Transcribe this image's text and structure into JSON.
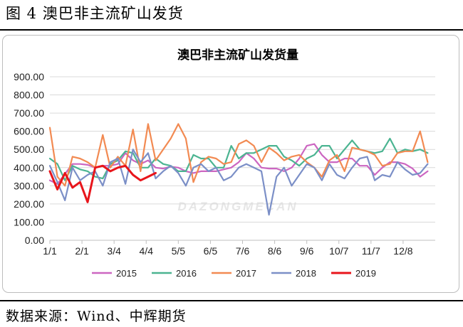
{
  "figure_title": "图 4 澳巴非主流矿山发货",
  "source": "数据来源：Wind、中辉期货",
  "watermark": "DAZONGMECAN",
  "chart_data": {
    "type": "line",
    "title": "澳巴非主流矿山发货量",
    "xlabel": "",
    "ylabel": "",
    "ylim": [
      0,
      900
    ],
    "yticks": [
      "0.00",
      "100.00",
      "200.00",
      "300.00",
      "400.00",
      "500.00",
      "600.00",
      "700.00",
      "800.00",
      "900.00"
    ],
    "xticks": [
      "1/1",
      "2/1",
      "3/4",
      "4/4",
      "5/5",
      "6/5",
      "7/6",
      "8/6",
      "9/6",
      "10/7",
      "11/7",
      "12/8"
    ],
    "x_range_weeks": [
      0,
      51
    ],
    "grid": "horizontal",
    "legend": "bottom",
    "series": [
      {
        "name": "2015",
        "color": "#cc66c1",
        "values": [
          330,
          310,
          365,
          420,
          420,
          415,
          400,
          410,
          410,
          420,
          480,
          440,
          420,
          440,
          400,
          395,
          405,
          400,
          380,
          370,
          380,
          380,
          380,
          390,
          400,
          430,
          480,
          450,
          400,
          395,
          395,
          380,
          400,
          450,
          520,
          530,
          470,
          430,
          430,
          450,
          450,
          410,
          410,
          360,
          400,
          430,
          430,
          420,
          395,
          350,
          380
        ]
      },
      {
        "name": "2016",
        "color": "#4bb491",
        "values": [
          450,
          420,
          330,
          410,
          390,
          380,
          350,
          340,
          420,
          440,
          490,
          480,
          400,
          400,
          450,
          420,
          410,
          380,
          380,
          470,
          450,
          450,
          400,
          400,
          520,
          450,
          480,
          480,
          500,
          520,
          520,
          460,
          440,
          410,
          450,
          470,
          520,
          520,
          450,
          500,
          550,
          500,
          490,
          480,
          490,
          560,
          480,
          500,
          490,
          500,
          480
        ]
      },
      {
        "name": "2017",
        "color": "#f28a52",
        "values": [
          620,
          350,
          300,
          460,
          450,
          430,
          400,
          580,
          400,
          460,
          410,
          610,
          380,
          640,
          440,
          500,
          560,
          640,
          560,
          320,
          430,
          460,
          450,
          420,
          430,
          530,
          550,
          520,
          430,
          510,
          480,
          440,
          460,
          470,
          430,
          400,
          350,
          440,
          470,
          380,
          510,
          500,
          490,
          470,
          410,
          420,
          480,
          490,
          490,
          600,
          430
        ]
      },
      {
        "name": "2018",
        "color": "#7b8fc7",
        "values": [
          410,
          320,
          220,
          400,
          330,
          360,
          380,
          300,
          430,
          450,
          310,
          500,
          430,
          480,
          340,
          380,
          410,
          370,
          300,
          400,
          420,
          380,
          400,
          330,
          350,
          400,
          420,
          400,
          380,
          140,
          350,
          400,
          300,
          360,
          420,
          400,
          330,
          420,
          360,
          340,
          400,
          450,
          460,
          330,
          360,
          350,
          430,
          390,
          360,
          370,
          420
        ]
      },
      {
        "name": "2019",
        "color": "#e8151b",
        "values": [
          380,
          280,
          370,
          290,
          320,
          210,
          400,
          410,
          380,
          400,
          410,
          360,
          330,
          350,
          370
        ]
      }
    ]
  }
}
